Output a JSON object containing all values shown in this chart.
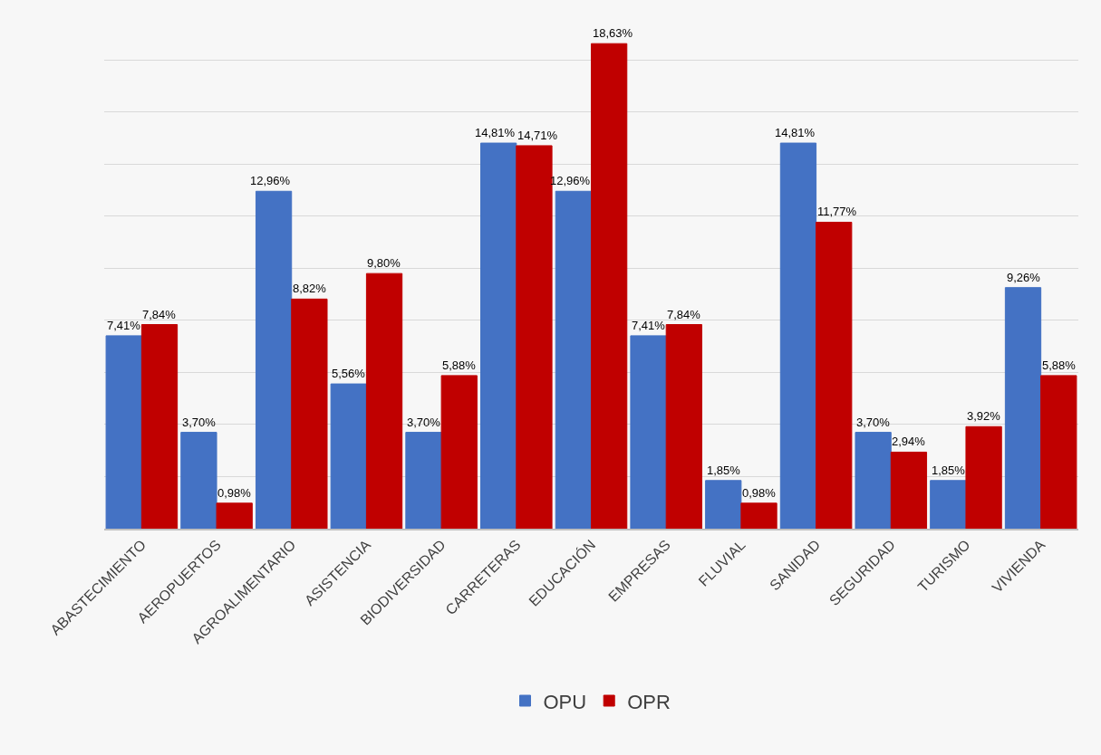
{
  "chart_data": {
    "type": "bar",
    "categories": [
      "ABASTECIMIENTO",
      "AEROPUERTOS",
      "AGROALIMENTARIO",
      "ASISTENCIA",
      "BIODIVERSIDAD",
      "CARRETERAS",
      "EDUCACIÓN",
      "EMPRESAS",
      "FLUVIAL",
      "SANIDAD",
      "SEGURIDAD",
      "TURISMO",
      "VIVIENDA"
    ],
    "series": [
      {
        "name": "OPU",
        "color": "#4472c4",
        "values": [
          7.41,
          3.7,
          12.96,
          5.56,
          3.7,
          14.81,
          12.96,
          7.41,
          1.85,
          14.81,
          3.7,
          1.85,
          9.26
        ],
        "value_labels": [
          "7,41%",
          "3,70%",
          "12,96%",
          "5,56%",
          "3,70%",
          "14,81%",
          "12,96%",
          "7,41%",
          "1,85%",
          "14,81%",
          "3,70%",
          "1,85%",
          "9,26%"
        ]
      },
      {
        "name": "OPR",
        "color": "#c00000",
        "values": [
          7.84,
          0.98,
          8.82,
          9.8,
          5.88,
          14.71,
          18.63,
          7.84,
          0.98,
          11.77,
          2.94,
          3.92,
          5.88
        ],
        "value_labels": [
          "7,84%",
          "0,98%",
          "8,82%",
          "9,80%",
          "5,88%",
          "14,71%",
          "18,63%",
          "7,84%",
          "0,98%",
          "11,77%",
          "2,94%",
          "3,92%",
          "5,88%"
        ]
      }
    ],
    "grid": "y",
    "legend": "bottom",
    "tick_labels": "x"
  }
}
